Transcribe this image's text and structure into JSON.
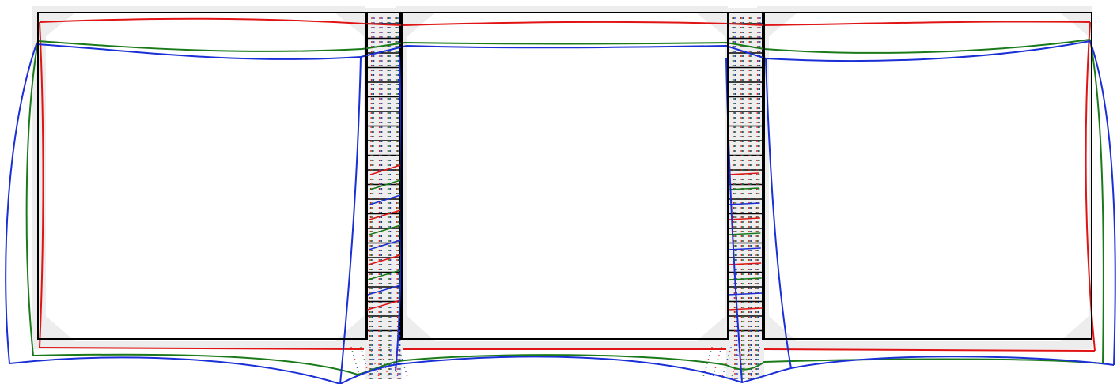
{
  "figure": {
    "description_visible_text": "",
    "colors": {
      "background": "#ffffff",
      "shading": "#ededed",
      "undeformed": "#000000",
      "deformed_stage_1": "#e01414",
      "deformed_stage_2": "#1a7a1a",
      "deformed_stage_3": "#1a2fd6"
    },
    "structure": {
      "panel_count": 3,
      "joint_count": 2
    }
  }
}
